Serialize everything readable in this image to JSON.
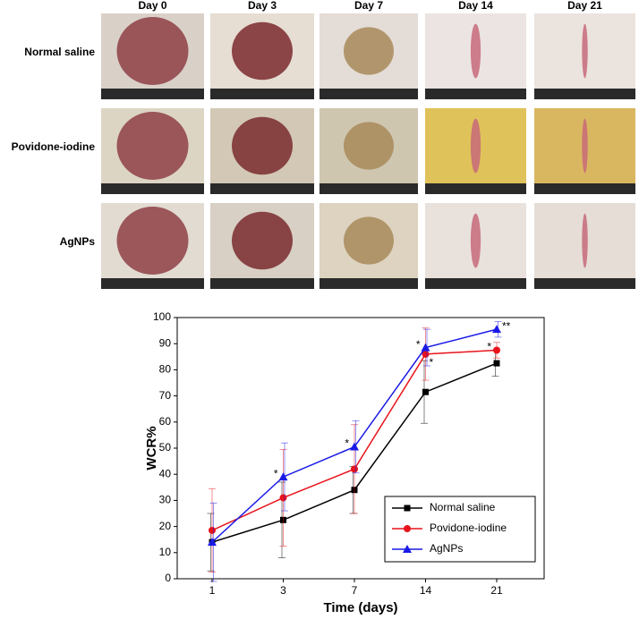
{
  "photo_grid": {
    "columns": [
      "Day 0",
      "Day 3",
      "Day 7",
      "Day 14",
      "Day 21"
    ],
    "rows": [
      "Normal saline",
      "Povidone-iodine",
      "AgNPs"
    ]
  },
  "chart_data": {
    "type": "line",
    "categories": [
      "1",
      "3",
      "7",
      "14",
      "21"
    ],
    "x_label": "Time (days)",
    "y_label": "WCR%",
    "ylim": [
      0,
      100
    ],
    "yticks": [
      0,
      10,
      20,
      30,
      40,
      50,
      60,
      70,
      80,
      90,
      100
    ],
    "legend": "lower-right",
    "series": [
      {
        "name": "Normal saline",
        "color": "#000000",
        "marker": "square",
        "values": [
          14,
          22.5,
          34,
          71.5,
          82.5
        ],
        "errors": [
          11,
          14.5,
          9,
          12,
          5
        ],
        "annotations": [
          null,
          null,
          null,
          null,
          null
        ]
      },
      {
        "name": "Povidone-iodine",
        "color": "#e8141b",
        "marker": "circle",
        "values": [
          18.5,
          31,
          42,
          86,
          87.5
        ],
        "errors": [
          16,
          18.5,
          17,
          10,
          3
        ],
        "annotations": [
          null,
          null,
          null,
          "*",
          "*"
        ]
      },
      {
        "name": "AgNPs",
        "color": "#1a1ae6",
        "marker": "triangle",
        "values": [
          14,
          39,
          50.5,
          88.5,
          95.5
        ],
        "errors": [
          15,
          13,
          10,
          7,
          3
        ],
        "annotations": [
          null,
          "*",
          "*",
          "*",
          "**"
        ]
      }
    ]
  }
}
